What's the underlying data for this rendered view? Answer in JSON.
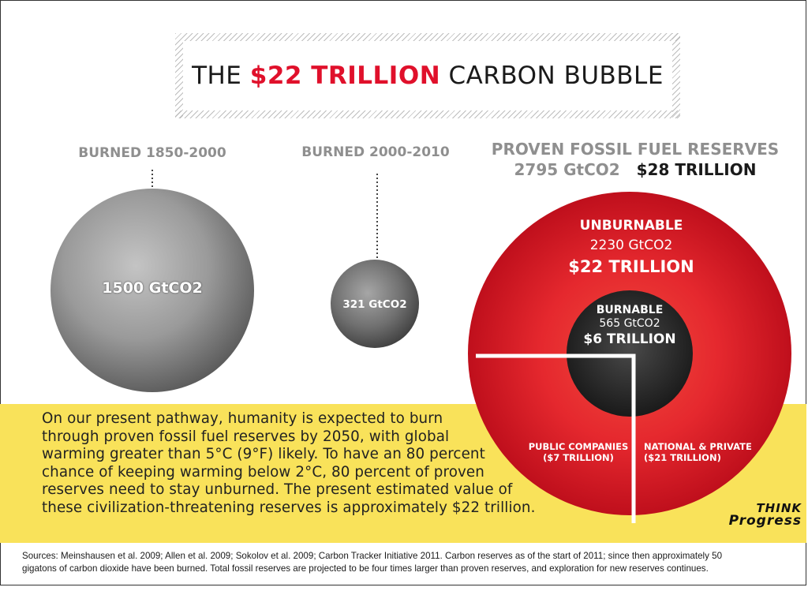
{
  "title": {
    "prefix": "THE ",
    "highlight": "$22 TRILLION",
    "suffix": " CARBON BUBBLE"
  },
  "columns": {
    "burned_1850_2000": {
      "label": "BURNED 1850-2000",
      "value": "1500 GtCO2"
    },
    "burned_2000_2010": {
      "label": "BURNED 2000-2010",
      "value": "321 GtCO2"
    },
    "reserves": {
      "label": "PROVEN FOSSIL FUEL RESERVES",
      "amount": "2795 GtCO2",
      "value": "$28 TRILLION"
    }
  },
  "reserves_chart": {
    "unburnable": {
      "label": "UNBURNABLE",
      "amount": "2230 GtCO2",
      "value": "$22 TRILLION"
    },
    "burnable": {
      "label": "BURNABLE",
      "amount": "565 GtCO2",
      "value": "$6 TRILLION"
    },
    "public": {
      "label": "PUBLIC COMPANIES",
      "value": "($7 TRILLION)"
    },
    "national": {
      "label": "NATIONAL & PRIVATE",
      "value": "($21 TRILLION)"
    }
  },
  "paragraph": [
    "On our present pathway, humanity is expected to burn",
    "through proven fossil fuel reserves by 2050, with global",
    "warming greater than 5°C (9°F) likely. To have an 80 percent",
    "chance of keeping warming below 2°C, 80 percent of proven",
    "reserves need to stay unburned.  The present estimated value of",
    "these civilization-threatening reserves is approximately $22 trillion."
  ],
  "logo": {
    "line1": "THINK",
    "line2": "Progress"
  },
  "sources": [
    "Sources: Meinshausen et al. 2009; Allen et al. 2009; Sokolov et al. 2009; Carbon Tracker Initiative 2011. Carbon reserves as of the start of 2011; since then approximately 50",
    "gigatons of carbon dioxide have been burned. Total fossil reserves are projected to be four times larger than proven reserves, and exploration for new reserves continues."
  ],
  "colors": {
    "accent_red": "#e0102b",
    "band_yellow": "#f9e25a",
    "label_gray": "#8f8f8f"
  }
}
